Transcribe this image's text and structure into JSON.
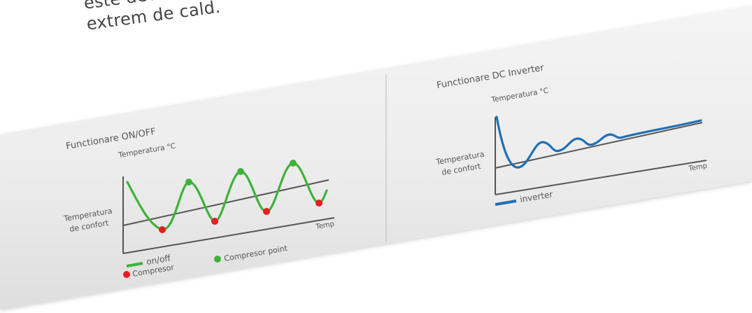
{
  "intro_text": {
    "line1": "este deosebit",
    "line2": "extrem de cald."
  },
  "colors": {
    "onoff_curve": "#3fb23a",
    "inverter_curve": "#1f6fb5",
    "compressor_dot": "#e31e24",
    "compressor_point_dot": "#3fb23a",
    "axis": "#555555"
  },
  "left_panel": {
    "title": "Functionare ON/OFF",
    "y_axis_label": "Temperatura °C",
    "comfort_label_line1": "Temperatura",
    "comfort_label_line2": "de confort",
    "x_axis_label": "Temp",
    "legend": {
      "curve": "on/off",
      "compressor": "Compresor",
      "compressor_point": "Compresor point"
    }
  },
  "right_panel": {
    "title": "Functionare DC Inverter",
    "y_axis_label": "Temperatura °C",
    "comfort_label_line1": "Temperatura",
    "comfort_label_line2": "de confort",
    "x_axis_label": "Temp",
    "legend": {
      "curve": "inverter"
    }
  }
}
